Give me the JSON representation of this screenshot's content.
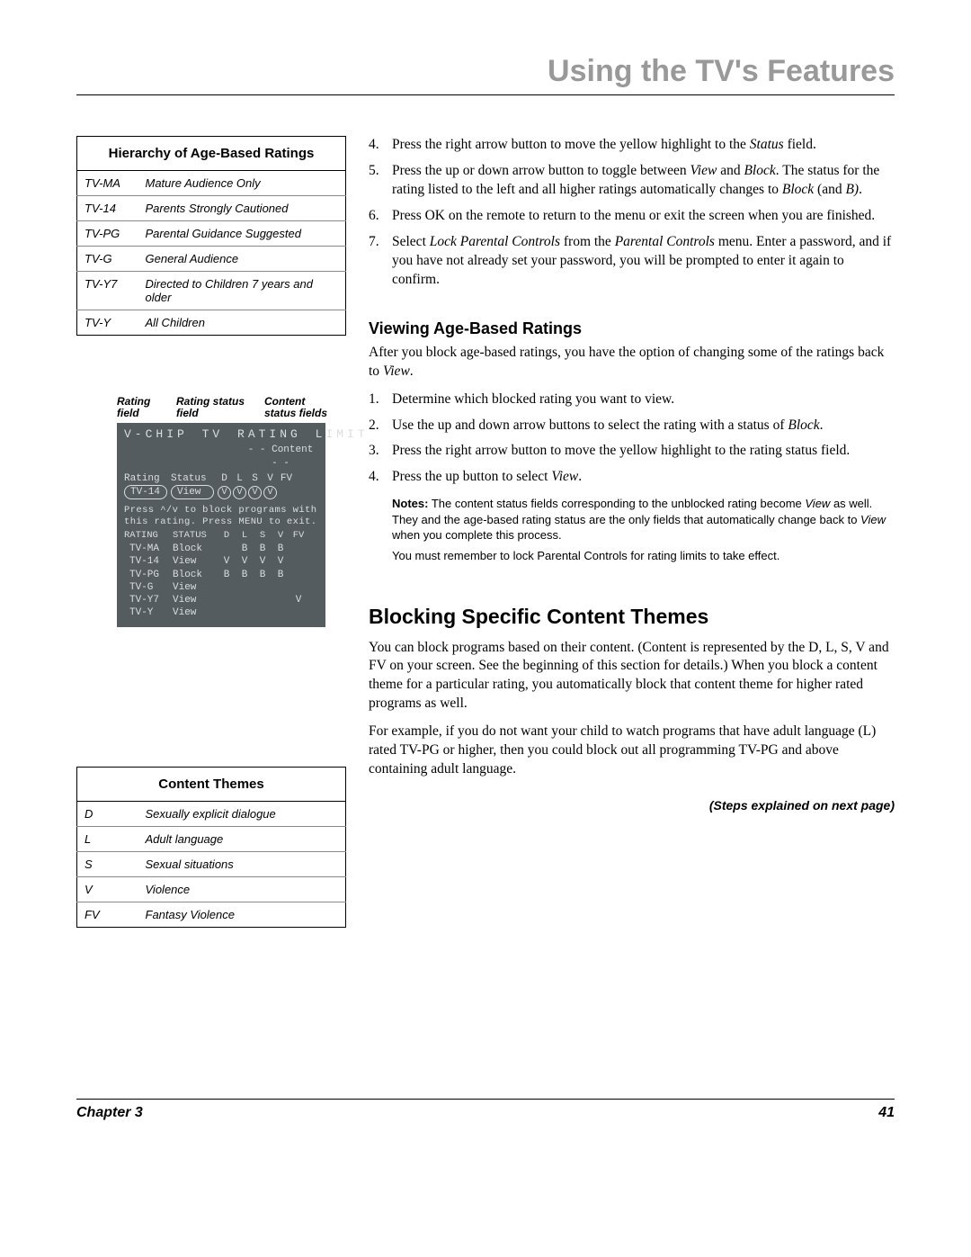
{
  "page": {
    "title": "Using the TV's Features",
    "chapter": "Chapter 3",
    "pageNum": "41"
  },
  "hierarchyTable": {
    "header": "Hierarchy of Age-Based Ratings",
    "rows": [
      {
        "code": "TV-MA",
        "desc": "Mature Audience Only"
      },
      {
        "code": "TV-14",
        "desc": "Parents Strongly Cautioned"
      },
      {
        "code": "TV-PG",
        "desc": "Parental Guidance Suggested"
      },
      {
        "code": "TV-G",
        "desc": "General Audience"
      },
      {
        "code": "TV-Y7",
        "desc": "Directed to Children 7 years and older"
      },
      {
        "code": "TV-Y",
        "desc": "All Children"
      }
    ]
  },
  "vchip": {
    "label1": "Rating field",
    "label2": "Rating status field",
    "label3": "Content status fields",
    "title": "V-CHIP TV RATING LIMIT",
    "subheadContent": "- - Content - -",
    "headRating": "Rating",
    "headStatus": "Status",
    "headD": "D",
    "headL": "L",
    "headS": "S",
    "headV": "V",
    "headFV": "FV",
    "selRating": "TV-14",
    "selStatus": "View",
    "selV1": "V",
    "selV2": "V",
    "selV3": "V",
    "selV4": "V",
    "hint1": "Press ^/v to block programs with",
    "hint2": "this rating. Press MENU to exit.",
    "tblHeadRating": "RATING",
    "tblHeadStatus": "STATUS",
    "rows": [
      {
        "r": "TV-MA",
        "s": "Block",
        "d": "",
        "l": "B",
        "ss": "B",
        "v": "B",
        "fv": ""
      },
      {
        "r": "TV-14",
        "s": "View",
        "d": "V",
        "l": "V",
        "ss": "V",
        "v": "V",
        "fv": ""
      },
      {
        "r": "TV-PG",
        "s": "Block",
        "d": "B",
        "l": "B",
        "ss": "B",
        "v": "B",
        "fv": ""
      },
      {
        "r": "TV-G",
        "s": "View",
        "d": "",
        "l": "",
        "ss": "",
        "v": "",
        "fv": ""
      },
      {
        "r": "TV-Y7",
        "s": "View",
        "d": "",
        "l": "",
        "ss": "",
        "v": "",
        "fv": "V"
      },
      {
        "r": "TV-Y",
        "s": "View",
        "d": "",
        "l": "",
        "ss": "",
        "v": "",
        "fv": ""
      }
    ]
  },
  "contentThemes": {
    "header": "Content Themes",
    "rows": [
      {
        "code": "D",
        "desc": "Sexually explicit dialogue"
      },
      {
        "code": "L",
        "desc": "Adult language"
      },
      {
        "code": "S",
        "desc": "Sexual situations"
      },
      {
        "code": "V",
        "desc": "Violence"
      },
      {
        "code": "FV",
        "desc": "Fantasy Violence"
      }
    ]
  },
  "steps47": {
    "4n": "4.",
    "4": "Press the right arrow button to move the yellow highlight to the ",
    "4i": "Status",
    "4b": " field.",
    "5n": "5.",
    "5a": "Press the up or down arrow button to toggle between ",
    "5i1": "View",
    "5b": " and ",
    "5i2": "Block",
    "5c": ". The status for the rating listed to the left and all higher ratings automatically changes to ",
    "5i3": "Block",
    "5d": " (and ",
    "5i4": "B)",
    "5e": ".",
    "6n": "6.",
    "6": "Press OK on the remote to return to the menu or exit the screen when you are finished.",
    "7n": "7.",
    "7a": "Select ",
    "7i1": "Lock Parental Controls",
    "7b": " from the ",
    "7i2": "Parental Controls",
    "7c": " menu. Enter a password, and if you have not already set your password, you will be prompted to enter it again to confirm."
  },
  "viewing": {
    "heading": "Viewing Age-Based Ratings",
    "intro1": "After you block age-based ratings, you have the option of changing some of the ratings back to ",
    "introI": "View",
    "intro2": ".",
    "1n": "1.",
    "1": "Determine which blocked rating you want to view.",
    "2n": "2.",
    "2a": "Use the up and down arrow buttons to select the rating with a status of ",
    "2i": "Block",
    "2b": ".",
    "3n": "3.",
    "3": "Press the right arrow button to move the yellow highlight to the rating status field.",
    "4n": "4.",
    "4a": "Press the up button to select ",
    "4i": "View",
    "4b": "."
  },
  "notes": {
    "label": "Notes:",
    "p1a": "  The content status fields corresponding to the unblocked rating become ",
    "p1i": "View",
    "p1b": " as well. They and the age-based rating status are the only fields that automatically change back to ",
    "p1i2": "View ",
    "p1c": "when you complete this process.",
    "p2": "You must remember to lock Parental Controls for rating limits to take effect."
  },
  "blocking": {
    "heading": "Blocking Specific Content Themes",
    "p1": "You can block programs based on their content. (Content is represented by the D, L, S, V and FV on your screen. See the beginning of this section for details.) When you block a content theme for a particular rating, you automatically block that content theme for higher rated programs as well.",
    "p2": "For example, if you do not want your child to watch programs that have adult language (L) rated TV-PG or higher, then you could block out all programming TV-PG and above containing adult language.",
    "next": "(Steps explained on next page)"
  }
}
